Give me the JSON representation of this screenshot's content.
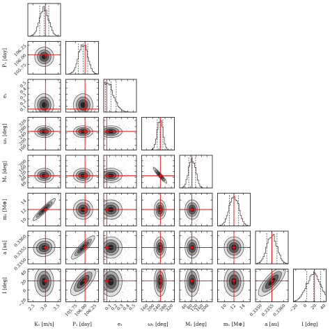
{
  "chart_data": {
    "type": "scatter",
    "style": "corner-plot",
    "colors": {
      "ink": "#222222",
      "truth": "#e01010",
      "median": "#222222",
      "bins": "#333333"
    },
    "parameters": [
      {
        "key": "K",
        "label": "K₁ [m/s]",
        "truth": 3.0,
        "median": 2.95,
        "sd": 0.18,
        "range": [
          2.3,
          3.6
        ],
        "ticks": [
          2.5,
          3.0,
          3.5
        ],
        "ticklabels": [
          "2.5",
          "3.0",
          "3.5"
        ],
        "skew": 0
      },
      {
        "key": "P",
        "label": "P₁ [day]",
        "truth": 106.0,
        "median": 105.95,
        "sd": 0.12,
        "range": [
          105.5,
          106.35
        ],
        "ticks": [
          105.75,
          106.0,
          106.25
        ],
        "ticklabels": [
          "105.75",
          "106.00",
          "106.25"
        ],
        "skew": 0
      },
      {
        "key": "e",
        "label": "e₁",
        "truth": 0.05,
        "median": 0.12,
        "sd": 0.09,
        "range": [
          0.0,
          0.55
        ],
        "ticks": [
          0.1,
          0.2,
          0.3,
          0.4,
          0.5
        ],
        "ticklabels": [
          "0.1",
          "0.2",
          "0.3",
          "0.4",
          "0.5"
        ],
        "skew": 1
      },
      {
        "key": "w",
        "label": "ω₁ [deg]",
        "truth": 250,
        "median": 248,
        "sd": 18,
        "range": [
          130,
          340
        ],
        "ticks": [
          160,
          200,
          240,
          280,
          320
        ],
        "ticklabels": [
          "160",
          "200",
          "240",
          "280",
          "320"
        ],
        "skew": 0
      },
      {
        "key": "M",
        "label": "M₁ [deg]",
        "truth": 90,
        "median": 92,
        "sd": 25,
        "range": [
          0,
          240
        ],
        "ticks": [
          40,
          80,
          120,
          160,
          200
        ],
        "ticklabels": [
          "40",
          "80",
          "120",
          "160",
          "200"
        ],
        "skew": 0
      },
      {
        "key": "m",
        "label": "m₁ [M⊕]",
        "truth": 12.0,
        "median": 12.0,
        "sd": 1.0,
        "range": [
          8.5,
          15.5
        ],
        "ticks": [
          10,
          12,
          14
        ],
        "ticklabels": [
          "10",
          "12",
          "14"
        ],
        "skew": 0
      },
      {
        "key": "a",
        "label": "a [au]",
        "truth": 0.3355,
        "median": 0.3355,
        "sd": 0.00022,
        "range": [
          0.3348,
          0.3362
        ],
        "ticks": [
          0.335,
          0.3355,
          0.336
        ],
        "ticklabels": [
          "0.3350",
          "0.3355",
          "0.3360"
        ],
        "skew": 0
      },
      {
        "key": "i",
        "label": "I [deg]",
        "truth": 20,
        "median": 18,
        "sd": 15,
        "range": [
          -25,
          45
        ],
        "ticks": [
          -20,
          0,
          20,
          40
        ],
        "ticklabels": [
          "−20",
          "0",
          "20",
          "40"
        ],
        "skew": 0
      }
    ],
    "correlations": [
      [
        0,
        5,
        0.95
      ],
      [
        1,
        6,
        0.9
      ],
      [
        1,
        7,
        0.75
      ],
      [
        6,
        7,
        0.8
      ],
      [
        3,
        4,
        -0.95
      ],
      [
        0,
        6,
        0.2
      ]
    ]
  }
}
